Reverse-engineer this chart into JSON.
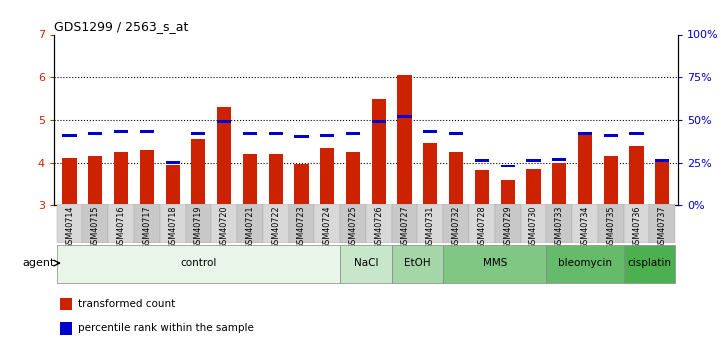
{
  "title": "GDS1299 / 2563_s_at",
  "samples": [
    "GSM40714",
    "GSM40715",
    "GSM40716",
    "GSM40717",
    "GSM40718",
    "GSM40719",
    "GSM40720",
    "GSM40721",
    "GSM40722",
    "GSM40723",
    "GSM40724",
    "GSM40725",
    "GSM40726",
    "GSM40727",
    "GSM40731",
    "GSM40732",
    "GSM40728",
    "GSM40729",
    "GSM40730",
    "GSM40733",
    "GSM40734",
    "GSM40735",
    "GSM40736",
    "GSM40737"
  ],
  "red_values": [
    4.1,
    4.15,
    4.25,
    4.3,
    3.95,
    4.55,
    5.3,
    4.2,
    4.2,
    3.97,
    4.35,
    4.25,
    5.5,
    6.05,
    4.45,
    4.25,
    3.82,
    3.6,
    3.85,
    4.0,
    4.65,
    4.15,
    4.4,
    4.05
  ],
  "blue_values": [
    41,
    42,
    43,
    43,
    25,
    42,
    49,
    42,
    42,
    40,
    41,
    42,
    49,
    52,
    43,
    42,
    26,
    23,
    26,
    27,
    42,
    41,
    42,
    26
  ],
  "ylim_left": [
    3,
    7
  ],
  "ylim_right": [
    0,
    100
  ],
  "yticks_left": [
    3,
    4,
    5,
    6,
    7
  ],
  "yticks_right": [
    0,
    25,
    50,
    75,
    100
  ],
  "ytick_labels_right": [
    "0%",
    "25%",
    "50%",
    "75%",
    "100%"
  ],
  "groups": [
    {
      "label": "control",
      "start": 0,
      "end": 11,
      "color": "#e8f5e8"
    },
    {
      "label": "NaCl",
      "start": 11,
      "end": 13,
      "color": "#c8e6c9"
    },
    {
      "label": "EtOH",
      "start": 13,
      "end": 15,
      "color": "#a5d6a7"
    },
    {
      "label": "MMS",
      "start": 15,
      "end": 19,
      "color": "#81c784"
    },
    {
      "label": "bleomycin",
      "start": 19,
      "end": 22,
      "color": "#66bb6a"
    },
    {
      "label": "cisplatin",
      "start": 22,
      "end": 24,
      "color": "#4caf50"
    }
  ],
  "bar_color_red": "#cc2200",
  "bar_color_blue": "#0000cc",
  "left_ytick_color": "#cc2200",
  "right_ytick_color": "#0000cc",
  "agent_label": "agent",
  "legend_items": [
    {
      "label": "transformed count",
      "color": "#cc2200"
    },
    {
      "label": "percentile rank within the sample",
      "color": "#0000cc"
    }
  ]
}
